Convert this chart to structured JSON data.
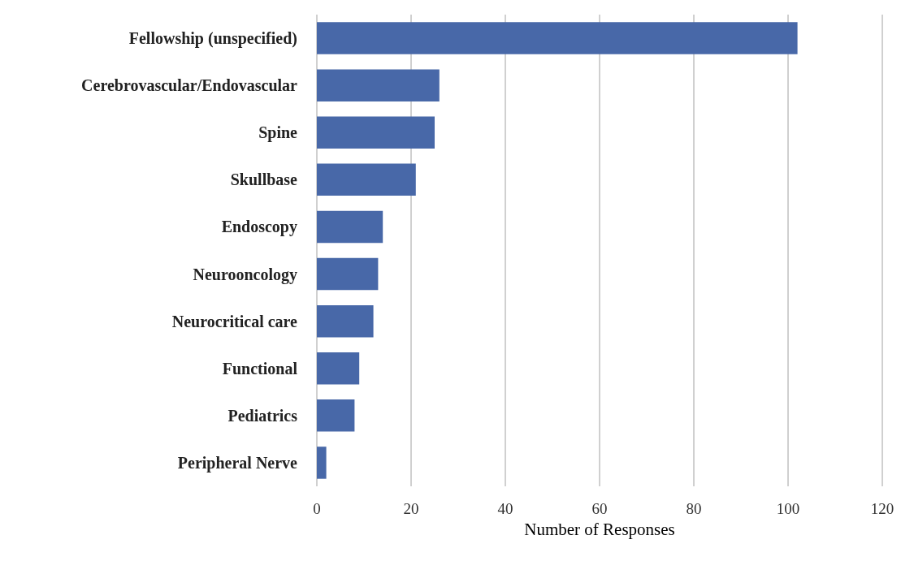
{
  "chart_data": {
    "type": "bar",
    "orientation": "horizontal",
    "xlabel": "Number of Responses",
    "categories": [
      "Fellowship (unspecified)",
      "Cerebrovascular/Endovascular",
      "Spine",
      "Skullbase",
      "Endoscopy",
      "Neurooncology",
      "Neurocritical care",
      "Functional",
      "Pediatrics",
      "Peripheral Nerve"
    ],
    "values": [
      102,
      26,
      25,
      21,
      14,
      13,
      12,
      9,
      8,
      2
    ],
    "color": "#4868a8",
    "xlim": [
      0,
      120
    ],
    "xticks": [
      0,
      20,
      40,
      60,
      80,
      100,
      120
    ],
    "grid": "x"
  }
}
